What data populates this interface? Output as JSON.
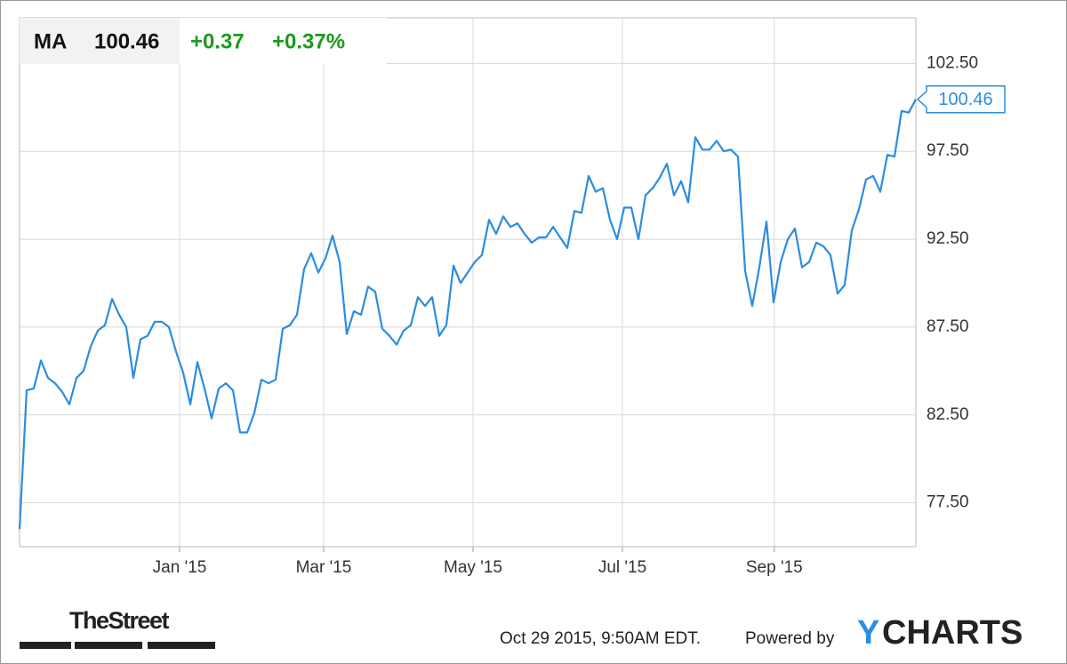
{
  "chart_data": {
    "type": "line",
    "quote": {
      "symbol": "MA",
      "price": "100.46",
      "change": "+0.37",
      "change_percent": "+0.37%"
    },
    "series": [
      {
        "name": "MA",
        "color": "#2b8de0",
        "values": [
          76.0,
          83.9,
          84.0,
          85.6,
          84.6,
          84.3,
          83.8,
          83.1,
          84.6,
          85.0,
          86.4,
          87.3,
          87.6,
          89.1,
          88.2,
          87.5,
          84.6,
          86.8,
          87.0,
          87.8,
          87.8,
          87.5,
          86.1,
          84.9,
          83.1,
          85.5,
          84.0,
          82.3,
          84.0,
          84.3,
          83.9,
          81.5,
          81.5,
          82.6,
          84.5,
          84.3,
          84.5,
          87.4,
          87.6,
          88.2,
          90.8,
          91.7,
          90.6,
          91.4,
          92.7,
          91.2,
          87.1,
          88.4,
          88.2,
          89.8,
          89.5,
          87.4,
          87.0,
          86.5,
          87.3,
          87.6,
          89.2,
          88.7,
          89.2,
          87.0,
          87.6,
          91.0,
          90.0,
          90.6,
          91.2,
          91.6,
          93.6,
          92.8,
          93.8,
          93.2,
          93.4,
          92.8,
          92.3,
          92.6,
          92.6,
          93.2,
          92.6,
          92.0,
          94.1,
          94.0,
          96.1,
          95.2,
          95.4,
          93.6,
          92.5,
          94.3,
          94.3,
          92.5,
          95.0,
          95.4,
          96.0,
          96.8,
          95.0,
          95.8,
          94.6,
          98.3,
          97.6,
          97.6,
          98.1,
          97.5,
          97.6,
          97.2,
          90.7,
          88.7,
          90.9,
          93.5,
          88.9,
          91.2,
          92.5,
          93.1,
          90.9,
          91.2,
          92.3,
          92.1,
          91.6,
          89.4,
          89.9,
          93.0,
          94.2,
          95.9,
          96.1,
          95.2,
          97.3,
          97.2,
          99.8,
          99.7,
          100.46
        ]
      }
    ],
    "xlim": [
      0,
      126
    ],
    "xticks": [
      {
        "value": 22.5,
        "label": "Jan '15"
      },
      {
        "value": 42.75,
        "label": "Mar '15"
      },
      {
        "value": 63.75,
        "label": "May '15"
      },
      {
        "value": 84.75,
        "label": "Jul '15"
      },
      {
        "value": 106.1,
        "label": "Sep '15"
      }
    ],
    "ylim": [
      75.0,
      105.1
    ],
    "yticks": [
      {
        "value": 77.5,
        "label": "77.50"
      },
      {
        "value": 82.5,
        "label": "82.50"
      },
      {
        "value": 87.5,
        "label": "87.50"
      },
      {
        "value": 92.5,
        "label": "92.50"
      },
      {
        "value": 97.5,
        "label": "97.50"
      },
      {
        "value": 102.5,
        "label": "102.50"
      }
    ],
    "grid": true,
    "footer": {
      "source": "TheStreet",
      "timestamp": "Oct 29 2015, 9:50AM EDT.",
      "powered_by": "Powered by",
      "brand_initial": "Y",
      "brand_rest": "CHARTS"
    }
  }
}
